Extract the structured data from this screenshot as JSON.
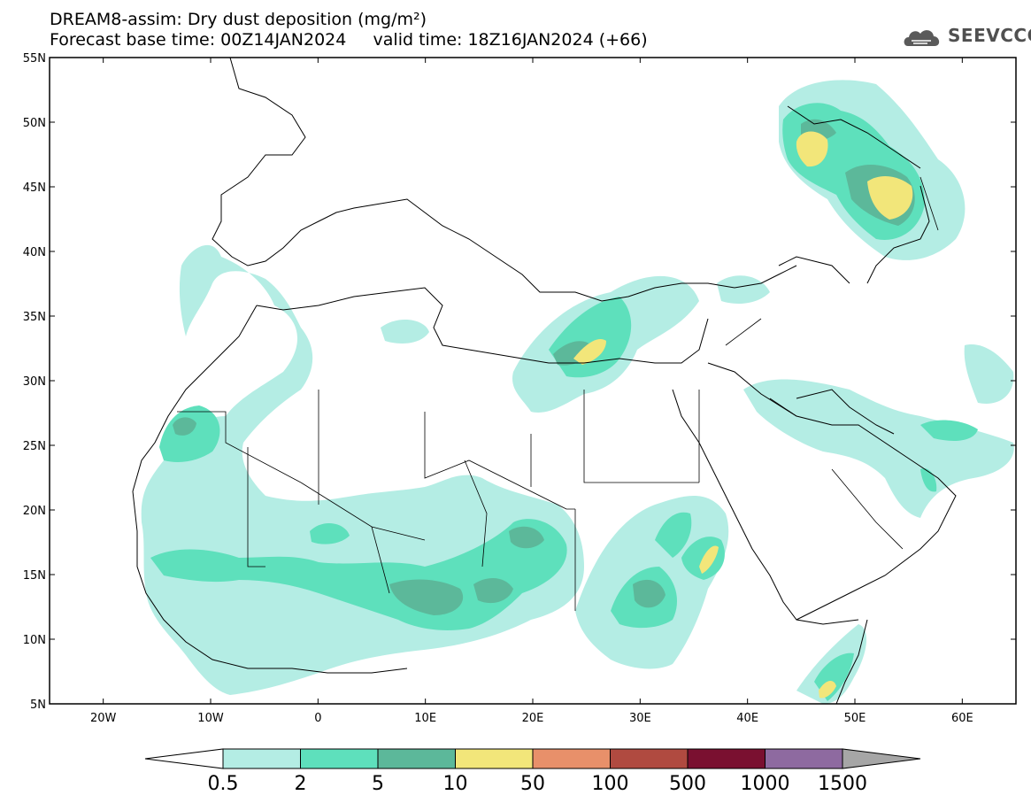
{
  "title": {
    "line1": "DREAM8-assim: Dry dust deposition (mg/m²)",
    "line2": "Forecast base time: 00Z14JAN2024     valid time: 18Z16JAN2024 (+66)"
  },
  "logo": {
    "text": "SEEVCCC",
    "icon": "cloud-icon"
  },
  "axes": {
    "lat_labels": [
      "55N",
      "50N",
      "45N",
      "40N",
      "35N",
      "30N",
      "25N",
      "20N",
      "15N",
      "10N",
      "5N"
    ],
    "lat_values": [
      55,
      50,
      45,
      40,
      35,
      30,
      25,
      20,
      15,
      10,
      5
    ],
    "lon_labels": [
      "20W",
      "10W",
      "0",
      "10E",
      "20E",
      "30E",
      "40E",
      "50E",
      "60E"
    ],
    "lon_values": [
      -20,
      -10,
      0,
      10,
      20,
      30,
      40,
      50,
      60
    ],
    "lon_range": [
      -25,
      65
    ],
    "lat_range": [
      5,
      55
    ]
  },
  "legend": {
    "labels": [
      "0.5",
      "2",
      "5",
      "10",
      "50",
      "100",
      "500",
      "1000",
      "1500"
    ],
    "colors": [
      "#b4ede4",
      "#5ee0bc",
      "#5cb89a",
      "#f2e67a",
      "#e8906a",
      "#b04a40",
      "#7a1030",
      "#8e6aa0"
    ],
    "under_color": "#ffffff",
    "over_color": "#a6a6a6"
  },
  "colors": {
    "c1": "#b4ede4",
    "c2": "#5ee0bc",
    "c3": "#5cb89a",
    "c4": "#f2e67a"
  }
}
